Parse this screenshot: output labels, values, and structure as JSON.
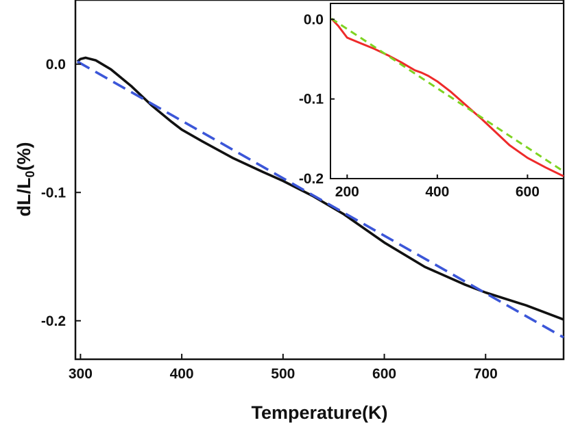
{
  "chart_data": [
    {
      "type": "line",
      "xlabel": "Temperature(K)",
      "ylabel": "dL/L",
      "ylabel_sub": "0",
      "ylabel_suffix": "(%)",
      "xlim": [
        295,
        777
      ],
      "ylim": [
        -0.23,
        0.05
      ],
      "xticks": [
        300,
        400,
        500,
        600,
        700
      ],
      "yticks": [
        0.0,
        -0.1,
        -0.2
      ],
      "xtick_labels": [
        "300",
        "400",
        "500",
        "600",
        "700"
      ],
      "ytick_labels": [
        "0.0",
        "-0.1",
        "-0.2"
      ],
      "grid": false,
      "series": [
        {
          "style": "solid",
          "color": "#111111",
          "x": [
            297,
            300,
            305,
            315,
            330,
            350,
            370,
            390,
            400,
            420,
            450,
            480,
            500,
            530,
            560,
            600,
            640,
            680,
            700,
            740,
            777
          ],
          "y": [
            0.002,
            0.004,
            0.005,
            0.003,
            -0.004,
            -0.017,
            -0.032,
            -0.045,
            -0.051,
            -0.06,
            -0.073,
            -0.084,
            -0.091,
            -0.103,
            -0.117,
            -0.139,
            -0.158,
            -0.172,
            -0.178,
            -0.188,
            -0.199
          ]
        },
        {
          "style": "dashed",
          "color": "#3b56d8",
          "x": [
            297,
            777
          ],
          "y": [
            0.002,
            -0.213
          ]
        }
      ]
    },
    {
      "type": "line",
      "inset": true,
      "xlim": [
        163,
        680
      ],
      "ylim": [
        -0.2,
        0.02
      ],
      "xticks": [
        200,
        400,
        600
      ],
      "yticks": [
        0.0,
        -0.1,
        -0.2
      ],
      "xtick_labels": [
        "200",
        "400",
        "600"
      ],
      "ytick_labels": [
        "0.0",
        "-0.1",
        "-0.2"
      ],
      "grid": false,
      "series": [
        {
          "style": "solid",
          "color": "#ee2a2a",
          "x": [
            165,
            180,
            200,
            230,
            260,
            290,
            320,
            350,
            365,
            380,
            400,
            430,
            460,
            500,
            530,
            560,
            600,
            640,
            680
          ],
          "y": [
            0.001,
            -0.008,
            -0.023,
            -0.03,
            -0.037,
            -0.045,
            -0.054,
            -0.064,
            -0.067,
            -0.071,
            -0.078,
            -0.091,
            -0.106,
            -0.126,
            -0.142,
            -0.158,
            -0.174,
            -0.186,
            -0.197
          ]
        },
        {
          "style": "dashed",
          "color": "#7ed321",
          "x": [
            165,
            680
          ],
          "y": [
            0.001,
            -0.191
          ]
        }
      ]
    }
  ]
}
